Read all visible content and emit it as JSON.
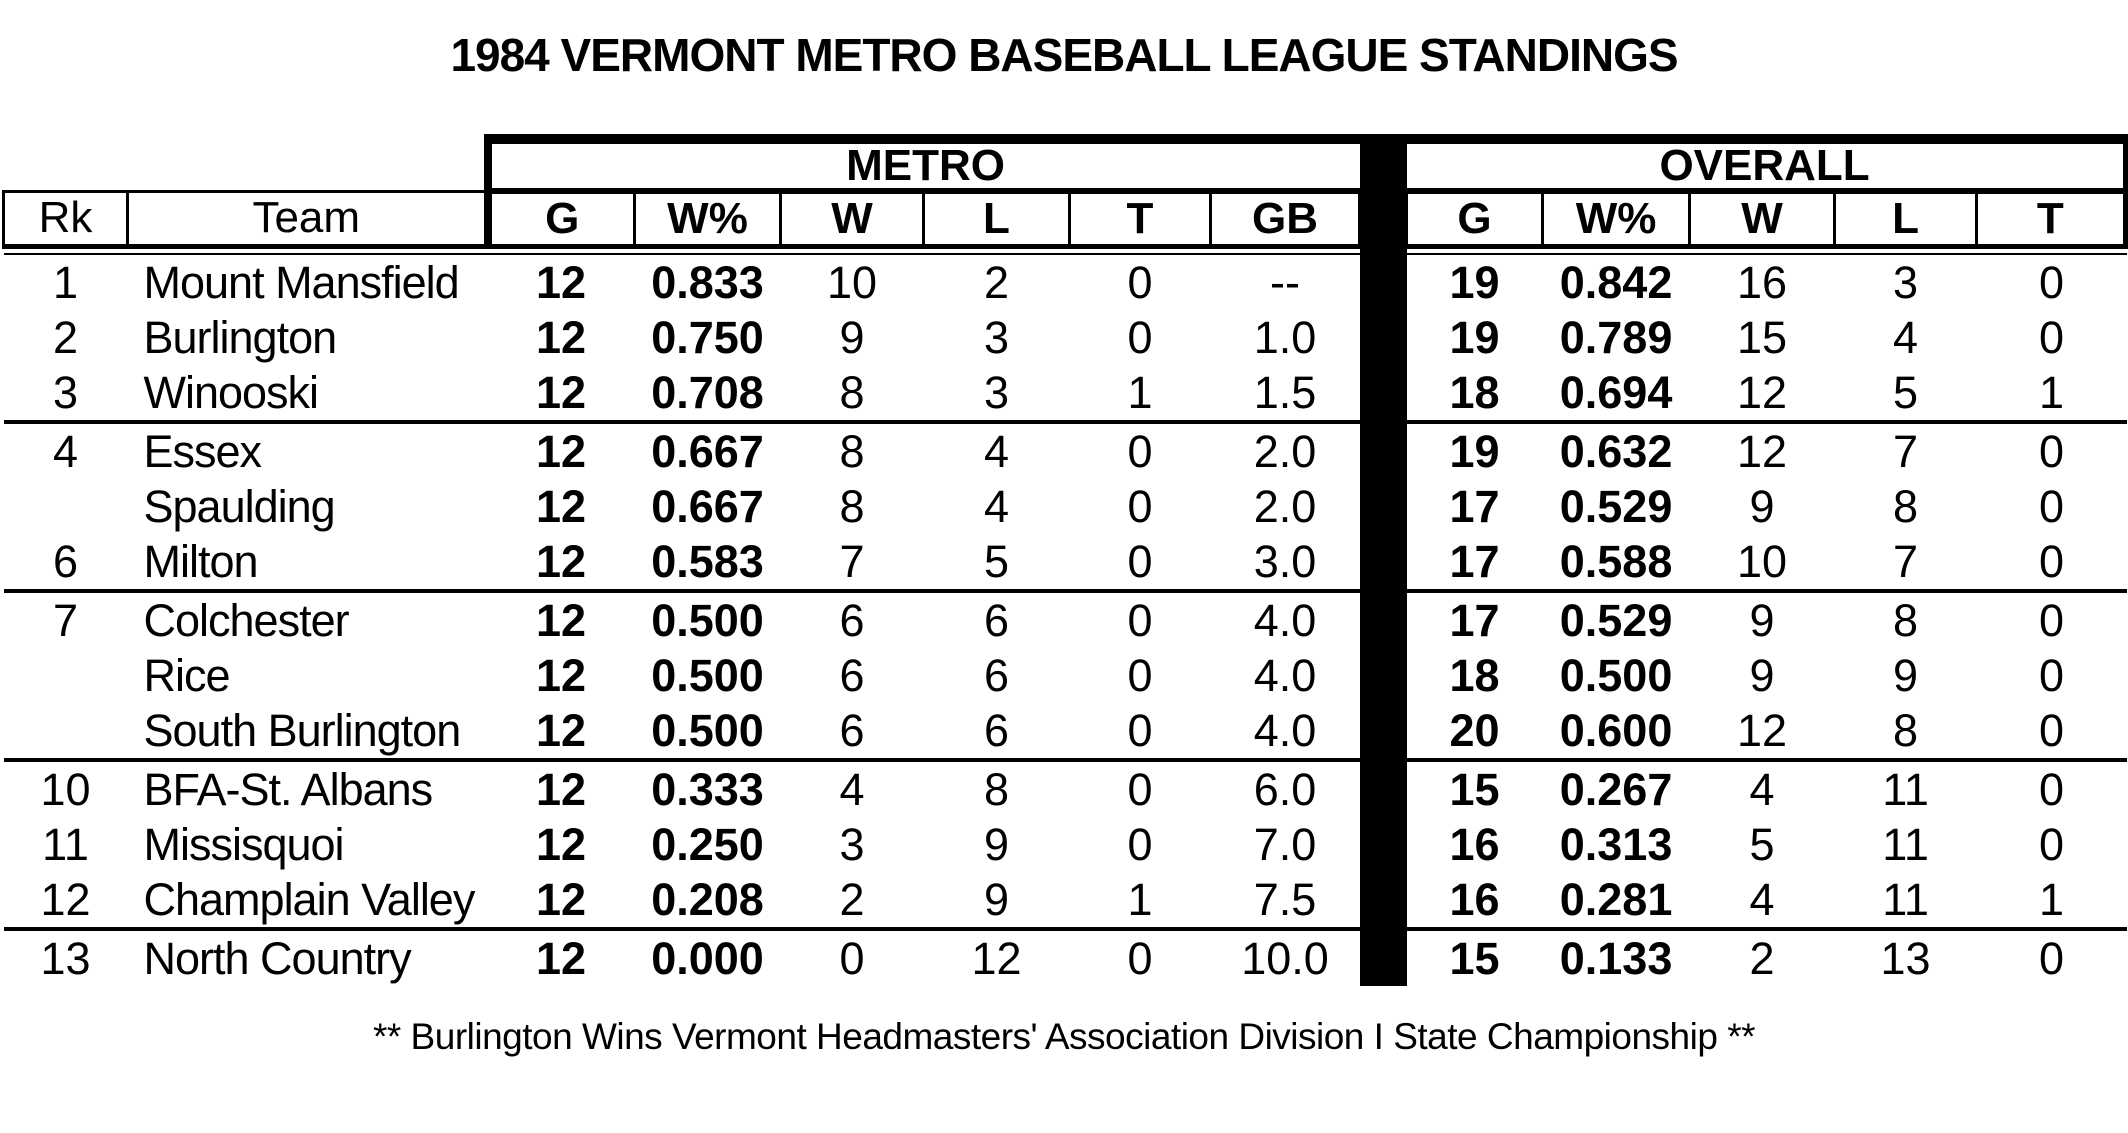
{
  "title": "1984 VERMONT METRO BASEBALL LEAGUE STANDINGS",
  "footer_note": "** Burlington Wins Vermont Headmasters' Association Division I State Championship **",
  "colors": {
    "text": "#000000",
    "background": "#ffffff",
    "divider_bar": "#000000"
  },
  "table": {
    "group_headers": {
      "metro": "METRO",
      "overall": "OVERALL"
    },
    "columns": {
      "rk": "Rk",
      "team": "Team",
      "metro": [
        "G",
        "W%",
        "W",
        "L",
        "T",
        "GB"
      ],
      "overall": [
        "G",
        "W%",
        "W",
        "L",
        "T"
      ]
    },
    "rows": [
      {
        "rk": "1",
        "team": "Mount Mansfield",
        "metro": [
          "12",
          "0.833",
          "10",
          "2",
          "0",
          "--"
        ],
        "overall": [
          "19",
          "0.842",
          "16",
          "3",
          "0"
        ],
        "section_end": false
      },
      {
        "rk": "2",
        "team": "Burlington",
        "metro": [
          "12",
          "0.750",
          "9",
          "3",
          "0",
          "1.0"
        ],
        "overall": [
          "19",
          "0.789",
          "15",
          "4",
          "0"
        ],
        "section_end": false
      },
      {
        "rk": "3",
        "team": "Winooski",
        "metro": [
          "12",
          "0.708",
          "8",
          "3",
          "1",
          "1.5"
        ],
        "overall": [
          "18",
          "0.694",
          "12",
          "5",
          "1"
        ],
        "section_end": true
      },
      {
        "rk": "4",
        "team": "Essex",
        "metro": [
          "12",
          "0.667",
          "8",
          "4",
          "0",
          "2.0"
        ],
        "overall": [
          "19",
          "0.632",
          "12",
          "7",
          "0"
        ],
        "section_end": false
      },
      {
        "rk": "",
        "team": "Spaulding",
        "metro": [
          "12",
          "0.667",
          "8",
          "4",
          "0",
          "2.0"
        ],
        "overall": [
          "17",
          "0.529",
          "9",
          "8",
          "0"
        ],
        "section_end": false
      },
      {
        "rk": "6",
        "team": "Milton",
        "metro": [
          "12",
          "0.583",
          "7",
          "5",
          "0",
          "3.0"
        ],
        "overall": [
          "17",
          "0.588",
          "10",
          "7",
          "0"
        ],
        "section_end": true
      },
      {
        "rk": "7",
        "team": "Colchester",
        "metro": [
          "12",
          "0.500",
          "6",
          "6",
          "0",
          "4.0"
        ],
        "overall": [
          "17",
          "0.529",
          "9",
          "8",
          "0"
        ],
        "section_end": false
      },
      {
        "rk": "",
        "team": "Rice",
        "metro": [
          "12",
          "0.500",
          "6",
          "6",
          "0",
          "4.0"
        ],
        "overall": [
          "18",
          "0.500",
          "9",
          "9",
          "0"
        ],
        "section_end": false
      },
      {
        "rk": "",
        "team": "South Burlington",
        "metro": [
          "12",
          "0.500",
          "6",
          "6",
          "0",
          "4.0"
        ],
        "overall": [
          "20",
          "0.600",
          "12",
          "8",
          "0"
        ],
        "section_end": true
      },
      {
        "rk": "10",
        "team": "BFA-St. Albans",
        "metro": [
          "12",
          "0.333",
          "4",
          "8",
          "0",
          "6.0"
        ],
        "overall": [
          "15",
          "0.267",
          "4",
          "11",
          "0"
        ],
        "section_end": false
      },
      {
        "rk": "11",
        "team": "Missisquoi",
        "metro": [
          "12",
          "0.250",
          "3",
          "9",
          "0",
          "7.0"
        ],
        "overall": [
          "16",
          "0.313",
          "5",
          "11",
          "0"
        ],
        "section_end": false
      },
      {
        "rk": "12",
        "team": "Champlain Valley",
        "metro": [
          "12",
          "0.208",
          "2",
          "9",
          "1",
          "7.5"
        ],
        "overall": [
          "16",
          "0.281",
          "4",
          "11",
          "1"
        ],
        "section_end": true
      },
      {
        "rk": "13",
        "team": "North Country",
        "metro": [
          "12",
          "0.000",
          "0",
          "12",
          "0",
          "10.0"
        ],
        "overall": [
          "15",
          "0.133",
          "2",
          "13",
          "0"
        ],
        "section_end": false
      }
    ]
  }
}
